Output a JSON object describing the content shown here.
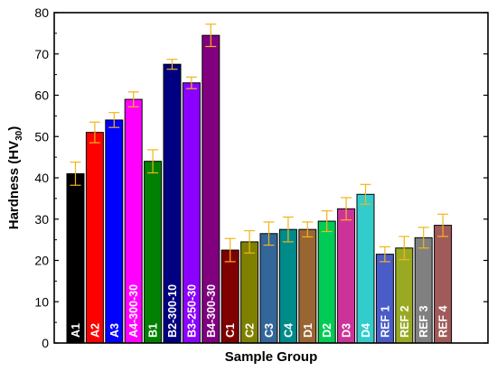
{
  "chart_data": {
    "type": "bar",
    "xlabel": "Sample Group",
    "ylabel_main": "Hardness (HV",
    "ylabel_sub": "30",
    "ylabel_close": ")",
    "ylim": [
      0,
      80
    ],
    "yticks": [
      "0",
      "10",
      "20",
      "30",
      "40",
      "50",
      "60",
      "70",
      "80"
    ],
    "grid": false,
    "legend": "none",
    "error_bar_color": "#f2b519",
    "categories": [
      "A1",
      "A2",
      "A3",
      "A4-300-30",
      "B1",
      "B2-300-10",
      "B3-250-30",
      "B4-300-30",
      "C1",
      "C2",
      "C3",
      "C4",
      "D1",
      "D2",
      "D3",
      "D4",
      "REF 1",
      "REF 2",
      "REF 3",
      "REF 4"
    ],
    "values": [
      41,
      51,
      54,
      59,
      44,
      67.5,
      63,
      74.5,
      22.5,
      24.5,
      26.5,
      27.5,
      27.5,
      29.5,
      32.5,
      36,
      21.5,
      23,
      25.5,
      28.5
    ],
    "errors": [
      2.8,
      2.5,
      1.8,
      1.8,
      2.8,
      1.2,
      1.4,
      2.7,
      2.8,
      2.7,
      2.8,
      3.0,
      1.8,
      2.5,
      2.7,
      2.4,
      1.8,
      2.8,
      2.5,
      2.7
    ],
    "colors": [
      "#000000",
      "#ff0000",
      "#0000ff",
      "#ff00ff",
      "#008000",
      "#000080",
      "#8b00ff",
      "#800080",
      "#800000",
      "#808000",
      "#336699",
      "#008b8b",
      "#996633",
      "#00cc55",
      "#cc3399",
      "#33cccc",
      "#4a5cc8",
      "#99aa22",
      "#808080",
      "#a05a5a"
    ]
  }
}
